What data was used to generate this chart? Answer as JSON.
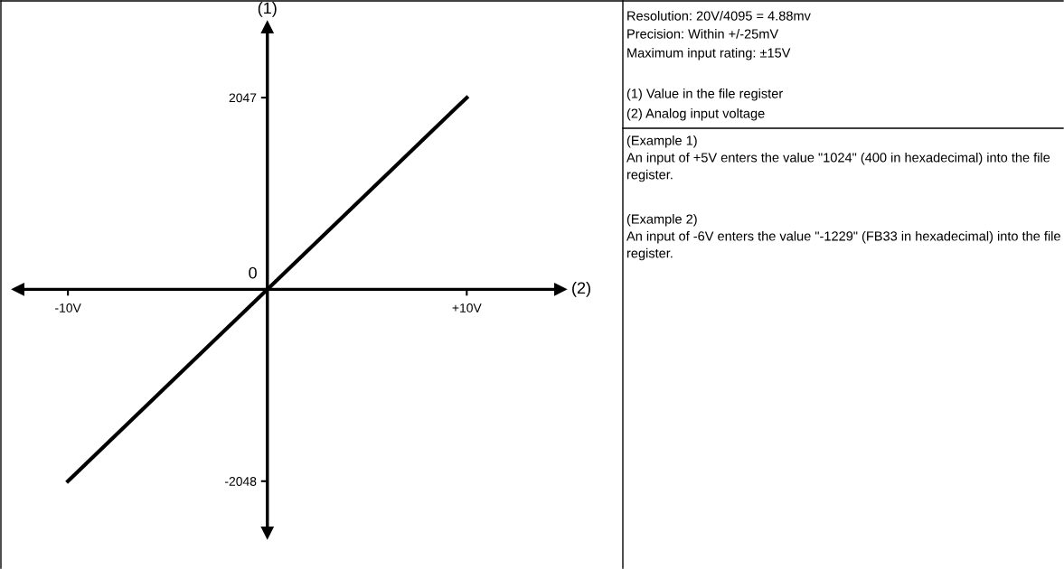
{
  "chart_data": {
    "type": "line",
    "xlabel": "(2)",
    "ylabel": "(1)",
    "x": [
      -10,
      10
    ],
    "values": [
      -2048,
      2047
    ],
    "color": "#000000",
    "xlim": [
      -12.5,
      14.7
    ],
    "ylim": [
      -2600,
      2800
    ],
    "xticks": [
      {
        "value": -10,
        "label": "-10V"
      },
      {
        "value": 10,
        "label": "+10V"
      }
    ],
    "yticks": [
      -2048,
      2047
    ],
    "annotations": [
      {
        "text": "0",
        "x": 0,
        "y": 0
      },
      "Resolution: 20V/4095 = 4.88mv",
      "Precision: Within +/-25mV",
      "Maximum input rating: ±15V",
      "(1) Value in the file register",
      "(2) Analog input voltage",
      "(Example 1)\nAn input of +5V enters the value \"1024\" (400 in hexadecimal) into the file register.",
      "(Example 2)\nAn input of -6V enters the value \"-1229\" (FB33 in hexadecimal) into the file register."
    ]
  }
}
